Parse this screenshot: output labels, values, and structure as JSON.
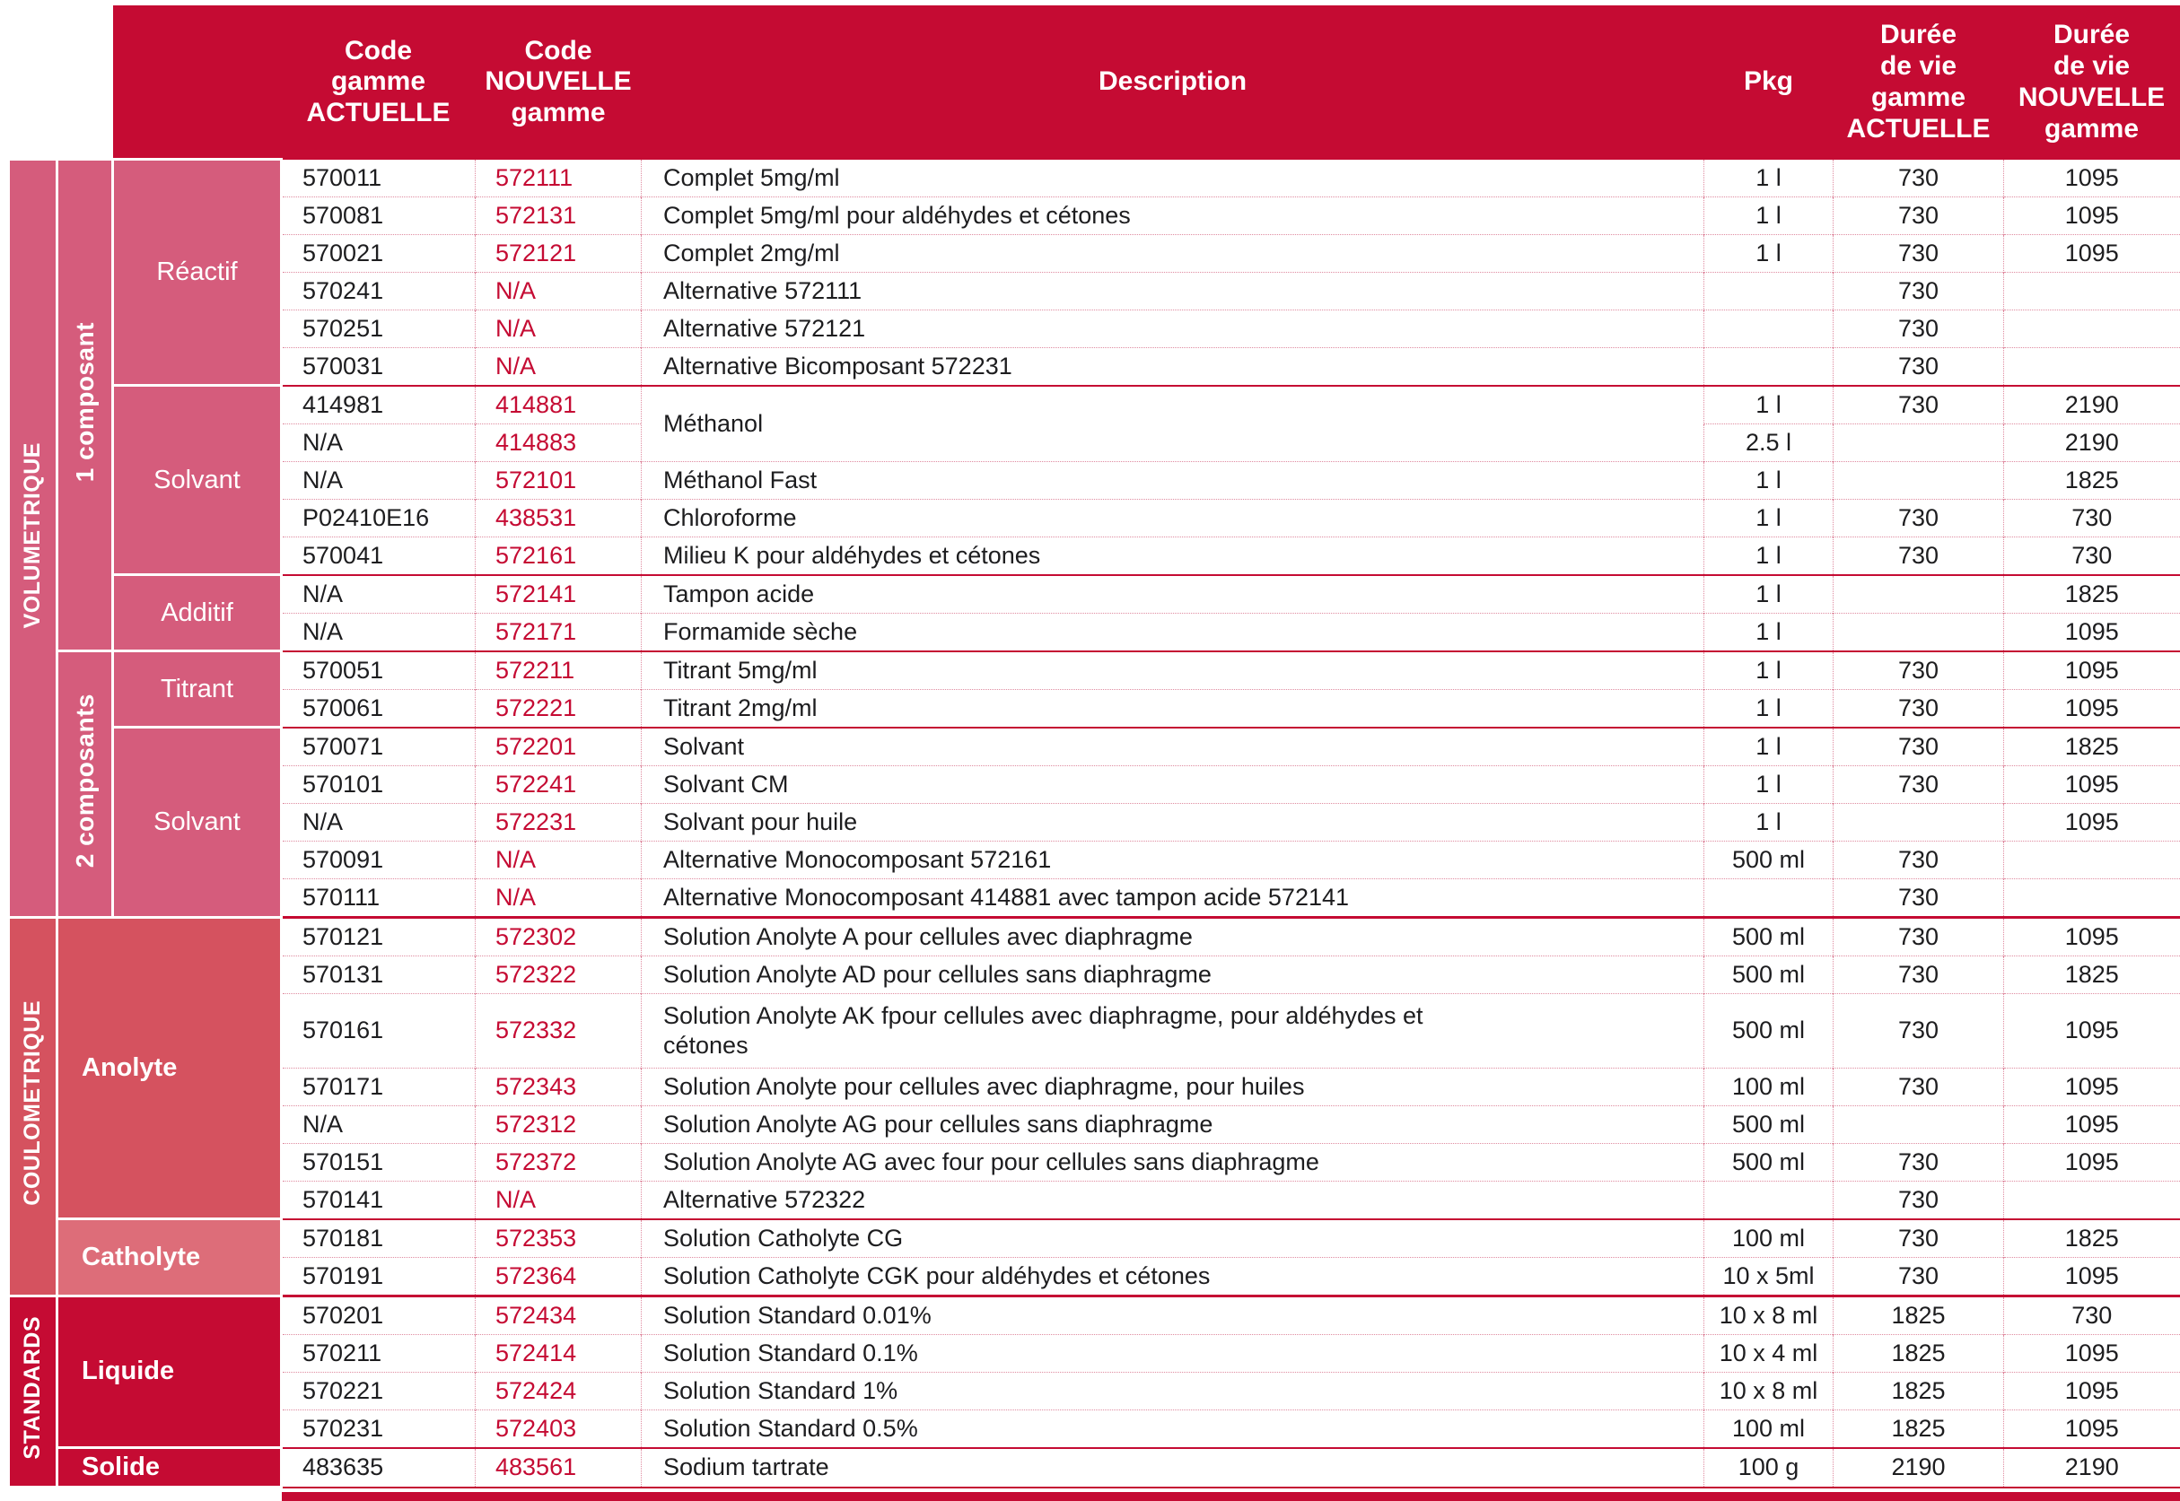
{
  "header": {
    "columns": [
      "Code\ngamme\nACTUELLE",
      "Code\nNOUVELLE\ngamme",
      "Description",
      "Pkg",
      "Durée\nde vie\ngamme\nACTUELLE",
      "Durée\nde vie\nNOUVELLE\ngamme"
    ]
  },
  "colors": {
    "header_bg": "#c50b33",
    "volumetrique_bg": "#d55c7c",
    "coulometrique_bg": "#d5525f",
    "catholyte_bg": "#dd6d79",
    "standards_bg": "#c50b33",
    "new_code_text": "#c50b33"
  },
  "sections": [
    {
      "name": "VOLUMETRIQUE",
      "groups": [
        {
          "name": "1 composant",
          "types": [
            {
              "name": "Réactif",
              "rows": [
                {
                  "code_actuelle": "570011",
                  "code_nouvelle": "572111",
                  "description": "Complet 5mg/ml",
                  "pkg": "1 l",
                  "duree_actuelle": "730",
                  "duree_nouvelle": "1095"
                },
                {
                  "code_actuelle": "570081",
                  "code_nouvelle": "572131",
                  "description": "Complet 5mg/ml pour aldéhydes et cétones",
                  "pkg": "1 l",
                  "duree_actuelle": "730",
                  "duree_nouvelle": "1095"
                },
                {
                  "code_actuelle": "570021",
                  "code_nouvelle": "572121",
                  "description": "Complet 2mg/ml",
                  "pkg": "1 l",
                  "duree_actuelle": "730",
                  "duree_nouvelle": "1095"
                },
                {
                  "code_actuelle": "570241",
                  "code_nouvelle": "N/A",
                  "description": "Alternative 572111",
                  "pkg": "",
                  "duree_actuelle": "730",
                  "duree_nouvelle": ""
                },
                {
                  "code_actuelle": "570251",
                  "code_nouvelle": "N/A",
                  "description": "Alternative 572121",
                  "pkg": "",
                  "duree_actuelle": "730",
                  "duree_nouvelle": ""
                },
                {
                  "code_actuelle": "570031",
                  "code_nouvelle": "N/A",
                  "description": "Alternative Bicomposant 572231",
                  "pkg": "",
                  "duree_actuelle": "730",
                  "duree_nouvelle": ""
                }
              ]
            },
            {
              "name": "Solvant",
              "rows": [
                {
                  "code_actuelle": "414981",
                  "code_nouvelle": "414881",
                  "description": "Méthanol",
                  "desc_rows": 2,
                  "pkg": "1 l",
                  "duree_actuelle": "730",
                  "duree_nouvelle": "2190"
                },
                {
                  "code_actuelle": "N/A",
                  "code_nouvelle": "414883",
                  "description": null,
                  "pkg": "2.5 l",
                  "duree_actuelle": "",
                  "duree_nouvelle": "2190"
                },
                {
                  "code_actuelle": "N/A",
                  "code_nouvelle": "572101",
                  "description": "Méthanol Fast",
                  "pkg": "1 l",
                  "duree_actuelle": "",
                  "duree_nouvelle": "1825"
                },
                {
                  "code_actuelle": "P02410E16",
                  "code_nouvelle": "438531",
                  "description": "Chloroforme",
                  "pkg": "1 l",
                  "duree_actuelle": "730",
                  "duree_nouvelle": "730"
                },
                {
                  "code_actuelle": "570041",
                  "code_nouvelle": "572161",
                  "description": "Milieu K pour aldéhydes et cétones",
                  "pkg": "1 l",
                  "duree_actuelle": "730",
                  "duree_nouvelle": "730"
                }
              ]
            },
            {
              "name": "Additif",
              "rows": [
                {
                  "code_actuelle": "N/A",
                  "code_nouvelle": "572141",
                  "description": "Tampon acide",
                  "pkg": "1 l",
                  "duree_actuelle": "",
                  "duree_nouvelle": "1825"
                },
                {
                  "code_actuelle": "N/A",
                  "code_nouvelle": "572171",
                  "description": "Formamide sèche",
                  "pkg": "1 l",
                  "duree_actuelle": "",
                  "duree_nouvelle": "1095"
                }
              ]
            }
          ]
        },
        {
          "name": "2 composants",
          "types": [
            {
              "name": "Titrant",
              "rows": [
                {
                  "code_actuelle": "570051",
                  "code_nouvelle": "572211",
                  "description": "Titrant 5mg/ml",
                  "pkg": "1 l",
                  "duree_actuelle": "730",
                  "duree_nouvelle": "1095"
                },
                {
                  "code_actuelle": "570061",
                  "code_nouvelle": "572221",
                  "description": "Titrant 2mg/ml",
                  "pkg": "1 l",
                  "duree_actuelle": "730",
                  "duree_nouvelle": "1095"
                }
              ]
            },
            {
              "name": "Solvant",
              "rows": [
                {
                  "code_actuelle": "570071",
                  "code_nouvelle": "572201",
                  "description": "Solvant",
                  "pkg": "1 l",
                  "duree_actuelle": "730",
                  "duree_nouvelle": "1825"
                },
                {
                  "code_actuelle": "570101",
                  "code_nouvelle": "572241",
                  "description": "Solvant CM",
                  "pkg": "1 l",
                  "duree_actuelle": "730",
                  "duree_nouvelle": "1095"
                },
                {
                  "code_actuelle": "N/A",
                  "code_nouvelle": "572231",
                  "description": "Solvant pour huile",
                  "pkg": "1 l",
                  "duree_actuelle": "",
                  "duree_nouvelle": "1095"
                },
                {
                  "code_actuelle": "570091",
                  "code_nouvelle": "N/A",
                  "description": "Alternative Monocomposant 572161",
                  "pkg": "500 ml",
                  "duree_actuelle": "730",
                  "duree_nouvelle": ""
                },
                {
                  "code_actuelle": "570111",
                  "code_nouvelle": "N/A",
                  "description": "Alternative Monocomposant 414881 avec tampon acide 572141",
                  "pkg": "",
                  "duree_actuelle": "730",
                  "duree_nouvelle": ""
                }
              ]
            }
          ]
        }
      ]
    },
    {
      "name": "COULOMETRIQUE",
      "groups": [
        {
          "name": null,
          "types": [
            {
              "name": "Anolyte",
              "rows": [
                {
                  "code_actuelle": "570121",
                  "code_nouvelle": "572302",
                  "description": "Solution Anolyte A pour cellules avec diaphragme",
                  "pkg": "500 ml",
                  "duree_actuelle": "730",
                  "duree_nouvelle": "1095"
                },
                {
                  "code_actuelle": "570131",
                  "code_nouvelle": "572322",
                  "description": "Solution Anolyte AD pour cellules sans diaphragme",
                  "pkg": "500 ml",
                  "duree_actuelle": "730",
                  "duree_nouvelle": "1825"
                },
                {
                  "code_actuelle": "570161",
                  "code_nouvelle": "572332",
                  "description": "Solution Anolyte AK  fpour cellules avec diaphragme, pour aldéhydes et\ncétones",
                  "tall": true,
                  "pkg": "500 ml",
                  "duree_actuelle": "730",
                  "duree_nouvelle": "1095"
                },
                {
                  "code_actuelle": "570171",
                  "code_nouvelle": "572343",
                  "description": "Solution Anolyte pour cellules avec diaphragme, pour huiles",
                  "pkg": "100 ml",
                  "duree_actuelle": "730",
                  "duree_nouvelle": "1095"
                },
                {
                  "code_actuelle": "N/A",
                  "code_nouvelle": "572312",
                  "description": "Solution Anolyte AG pour cellules sans diaphragme",
                  "pkg": "500 ml",
                  "duree_actuelle": "",
                  "duree_nouvelle": "1095"
                },
                {
                  "code_actuelle": "570151",
                  "code_nouvelle": "572372",
                  "description": "Solution Anolyte AG avec four pour cellules sans diaphragme",
                  "pkg": "500 ml",
                  "duree_actuelle": "730",
                  "duree_nouvelle": "1095"
                },
                {
                  "code_actuelle": "570141",
                  "code_nouvelle": "N/A",
                  "description": "Alternative 572322",
                  "pkg": "",
                  "duree_actuelle": "730",
                  "duree_nouvelle": ""
                }
              ]
            },
            {
              "name": "Catholyte",
              "shade": "#dd6d79",
              "rows": [
                {
                  "code_actuelle": "570181",
                  "code_nouvelle": "572353",
                  "description": "Solution Catholyte CG",
                  "pkg": "100 ml",
                  "duree_actuelle": "730",
                  "duree_nouvelle": "1825"
                },
                {
                  "code_actuelle": "570191",
                  "code_nouvelle": "572364",
                  "description": "Solution Catholyte CGK pour aldéhydes et cétones",
                  "pkg": "10 x 5ml",
                  "duree_actuelle": "730",
                  "duree_nouvelle": "1095"
                }
              ]
            }
          ]
        }
      ]
    },
    {
      "name": "STANDARDS",
      "groups": [
        {
          "name": null,
          "types": [
            {
              "name": "Liquide",
              "rows": [
                {
                  "code_actuelle": "570201",
                  "code_nouvelle": "572434",
                  "description": "Solution Standard 0.01%",
                  "pkg": "10 x 8 ml",
                  "duree_actuelle": "1825",
                  "duree_nouvelle": "730"
                },
                {
                  "code_actuelle": "570211",
                  "code_nouvelle": "572414",
                  "description": "Solution Standard 0.1%",
                  "pkg": "10 x 4 ml",
                  "duree_actuelle": "1825",
                  "duree_nouvelle": "1095"
                },
                {
                  "code_actuelle": "570221",
                  "code_nouvelle": "572424",
                  "description": "Solution Standard 1%",
                  "pkg": "10 x 8 ml",
                  "duree_actuelle": "1825",
                  "duree_nouvelle": "1095"
                },
                {
                  "code_actuelle": "570231",
                  "code_nouvelle": "572403",
                  "description": "Solution Standard 0.5%",
                  "pkg": "100 ml",
                  "duree_actuelle": "1825",
                  "duree_nouvelle": "1095"
                }
              ]
            },
            {
              "name": "Solide",
              "rows": [
                {
                  "code_actuelle": "483635",
                  "code_nouvelle": "483561",
                  "description": "Sodium tartrate",
                  "pkg": "100 g",
                  "duree_actuelle": "2190",
                  "duree_nouvelle": "2190"
                }
              ]
            }
          ]
        }
      ]
    }
  ]
}
